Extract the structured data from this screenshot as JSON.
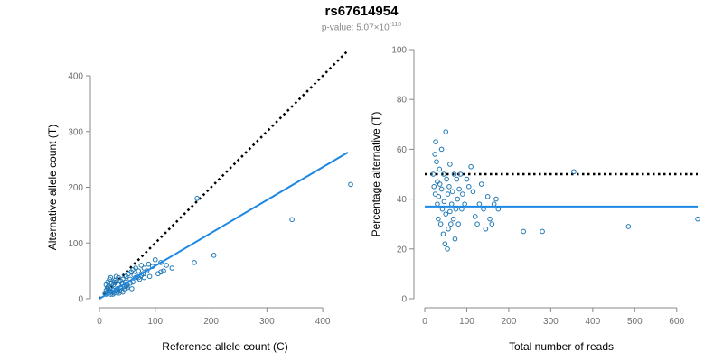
{
  "header": {
    "title": "rs67614954",
    "subtitle_prefix": "p-value: 5.07×10",
    "subtitle_exponent": "-110"
  },
  "colors": {
    "points": "#1f77b4",
    "fit_line": "#1e88e5",
    "reference_line": "#000000",
    "axis": "#888888"
  },
  "chart_data": [
    {
      "type": "scatter",
      "xlabel": "Reference allele count (C)",
      "ylabel": "Alternative allele count (T)",
      "xlim": [
        0,
        450
      ],
      "ylim": [
        0,
        400
      ],
      "xticks": [
        0,
        100,
        200,
        300,
        400
      ],
      "yticks": [
        0,
        100,
        200,
        300,
        400
      ],
      "grid": false,
      "points": [
        [
          10,
          10
        ],
        [
          12,
          15
        ],
        [
          14,
          12
        ],
        [
          15,
          18
        ],
        [
          16,
          10
        ],
        [
          18,
          14
        ],
        [
          20,
          20
        ],
        [
          22,
          12
        ],
        [
          24,
          16
        ],
        [
          25,
          25
        ],
        [
          27,
          10
        ],
        [
          28,
          22
        ],
        [
          30,
          15
        ],
        [
          30,
          30
        ],
        [
          32,
          18
        ],
        [
          33,
          12
        ],
        [
          35,
          25
        ],
        [
          36,
          14
        ],
        [
          38,
          20
        ],
        [
          40,
          28
        ],
        [
          40,
          15
        ],
        [
          42,
          35
        ],
        [
          44,
          22
        ],
        [
          45,
          18
        ],
        [
          46,
          30
        ],
        [
          48,
          40
        ],
        [
          50,
          25
        ],
        [
          52,
          45
        ],
        [
          55,
          35
        ],
        [
          57,
          48
        ],
        [
          60,
          30
        ],
        [
          62,
          42
        ],
        [
          65,
          55
        ],
        [
          68,
          40
        ],
        [
          70,
          50
        ],
        [
          72,
          35
        ],
        [
          75,
          60
        ],
        [
          78,
          45
        ],
        [
          80,
          55
        ],
        [
          85,
          50
        ],
        [
          88,
          62
        ],
        [
          90,
          40
        ],
        [
          95,
          58
        ],
        [
          100,
          70
        ],
        [
          105,
          45
        ],
        [
          110,
          65
        ],
        [
          115,
          50
        ],
        [
          120,
          60
        ],
        [
          12,
          25
        ],
        [
          15,
          30
        ],
        [
          18,
          35
        ],
        [
          20,
          8
        ],
        [
          22,
          28
        ],
        [
          25,
          12
        ],
        [
          28,
          33
        ],
        [
          30,
          40
        ],
        [
          12,
          8
        ],
        [
          14,
          20
        ],
        [
          35,
          10
        ],
        [
          38,
          32
        ],
        [
          42,
          12
        ],
        [
          45,
          42
        ],
        [
          50,
          20
        ],
        [
          55,
          28
        ],
        [
          60,
          52
        ],
        [
          20,
          38
        ],
        [
          16,
          22
        ],
        [
          26,
          30
        ],
        [
          34,
          38
        ],
        [
          65,
          38
        ],
        [
          110,
          48
        ],
        [
          130,
          55
        ],
        [
          70,
          38
        ],
        [
          75,
          42
        ],
        [
          48,
          22
        ],
        [
          58,
          18
        ],
        [
          80,
          38
        ],
        [
          24,
          8
        ],
        [
          175,
          180
        ],
        [
          170,
          65
        ],
        [
          205,
          78
        ],
        [
          345,
          142
        ],
        [
          450,
          205
        ]
      ],
      "fit_line": {
        "slope": 0.59,
        "intercept": 0,
        "x_range": [
          0,
          445
        ],
        "style": "solid"
      },
      "reference_line": {
        "slope": 1,
        "intercept": 0,
        "x_range": [
          0,
          445
        ],
        "style": "dotted"
      }
    },
    {
      "type": "scatter",
      "xlabel": "Total number of reads",
      "ylabel": "Percentage alternative (T)",
      "xlim": [
        0,
        650
      ],
      "ylim": [
        0,
        100
      ],
      "xticks": [
        0,
        100,
        200,
        300,
        400,
        500,
        600
      ],
      "yticks": [
        0,
        20,
        40,
        60,
        80,
        100
      ],
      "grid": false,
      "points": [
        [
          20,
          50
        ],
        [
          22,
          45
        ],
        [
          24,
          58
        ],
        [
          25,
          42
        ],
        [
          26,
          63
        ],
        [
          28,
          55
        ],
        [
          30,
          38
        ],
        [
          30,
          47
        ],
        [
          32,
          32
        ],
        [
          33,
          41
        ],
        [
          35,
          52
        ],
        [
          36,
          46
        ],
        [
          38,
          30
        ],
        [
          40,
          60
        ],
        [
          40,
          44
        ],
        [
          42,
          36
        ],
        [
          44,
          26
        ],
        [
          45,
          50
        ],
        [
          46,
          39
        ],
        [
          48,
          22
        ],
        [
          50,
          67
        ],
        [
          50,
          34
        ],
        [
          52,
          48
        ],
        [
          54,
          20
        ],
        [
          55,
          42
        ],
        [
          56,
          28
        ],
        [
          58,
          45
        ],
        [
          60,
          35
        ],
        [
          60,
          54
        ],
        [
          62,
          30
        ],
        [
          64,
          38
        ],
        [
          66,
          43
        ],
        [
          68,
          32
        ],
        [
          70,
          50
        ],
        [
          72,
          24
        ],
        [
          74,
          36
        ],
        [
          76,
          48
        ],
        [
          78,
          40
        ],
        [
          80,
          30
        ],
        [
          82,
          44
        ],
        [
          85,
          50
        ],
        [
          88,
          36
        ],
        [
          90,
          42
        ],
        [
          95,
          38
        ],
        [
          100,
          48
        ],
        [
          105,
          45
        ],
        [
          110,
          53
        ],
        [
          115,
          43
        ],
        [
          120,
          33
        ],
        [
          125,
          30
        ],
        [
          130,
          38
        ],
        [
          135,
          46
        ],
        [
          140,
          36
        ],
        [
          145,
          28
        ],
        [
          150,
          41
        ],
        [
          155,
          32
        ],
        [
          160,
          30
        ],
        [
          165,
          38
        ],
        [
          170,
          40
        ],
        [
          175,
          36
        ],
        [
          235,
          27
        ],
        [
          280,
          27
        ],
        [
          355,
          51
        ],
        [
          485,
          29
        ],
        [
          650,
          32
        ]
      ],
      "fit_line": {
        "y": 37,
        "x_range": [
          0,
          650
        ],
        "style": "solid"
      },
      "reference_line": {
        "y": 50,
        "x_range": [
          0,
          650
        ],
        "style": "dotted"
      }
    }
  ]
}
